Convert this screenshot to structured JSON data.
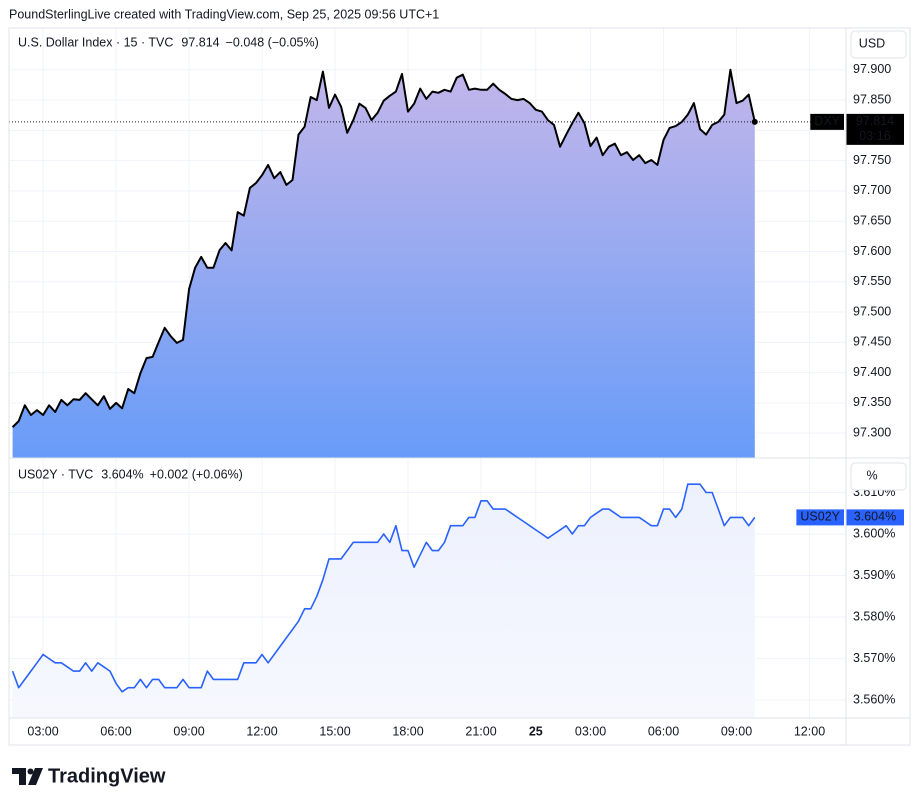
{
  "header": "PoundSterlingLive created with TradingView.com, Sep 25, 2025 09:56 UTC+1",
  "brand": "TradingView",
  "chart_data": [
    {
      "type": "area",
      "legend": {
        "title": "U.S. Dollar Index · 15 · TVC",
        "value": "97.814",
        "change": "−0.048 (−0.05%)"
      },
      "unit": "USD",
      "price_label": {
        "name": "DXY",
        "value": "97.814",
        "countdown": "03:16"
      },
      "price_line": true,
      "color": "#000000",
      "fill": [
        "#c2b6ea",
        "#689cf8"
      ],
      "label_color": "#000000",
      "grid": true,
      "xlim": [
        1.6,
        36
      ],
      "ylim": [
        97.259,
        97.969
      ],
      "yticks": [
        {
          "value": 97.3,
          "label": "97.300"
        },
        {
          "value": 97.35,
          "label": "97.350"
        },
        {
          "value": 97.4,
          "label": "97.400"
        },
        {
          "value": 97.45,
          "label": "97.450"
        },
        {
          "value": 97.5,
          "label": "97.500"
        },
        {
          "value": 97.55,
          "label": "97.550"
        },
        {
          "value": 97.6,
          "label": "97.600"
        },
        {
          "value": 97.65,
          "label": "97.650"
        },
        {
          "value": 97.7,
          "label": "97.700"
        },
        {
          "value": 97.75,
          "label": "97.750"
        },
        {
          "value": 97.8,
          "label": "97.800"
        },
        {
          "value": 97.85,
          "label": "97.850"
        },
        {
          "value": 97.9,
          "label": "97.900"
        }
      ],
      "x": [
        1.75,
        2,
        2.25,
        2.5,
        2.75,
        3,
        3.25,
        3.5,
        3.75,
        4,
        4.25,
        4.5,
        4.75,
        5,
        5.25,
        5.5,
        5.75,
        6,
        6.25,
        6.5,
        6.75,
        7,
        7.25,
        7.5,
        7.75,
        8,
        8.25,
        8.5,
        8.75,
        9,
        9.25,
        9.5,
        9.75,
        10,
        10.25,
        10.5,
        10.75,
        11,
        11.25,
        11.5,
        11.75,
        12,
        12.25,
        12.5,
        12.75,
        13,
        13.25,
        13.5,
        13.75,
        14,
        14.25,
        14.5,
        14.75,
        15,
        15.25,
        15.5,
        15.75,
        16,
        16.25,
        16.5,
        16.75,
        17,
        17.25,
        17.5,
        17.75,
        18,
        18.25,
        18.5,
        18.75,
        19,
        19.25,
        19.5,
        19.75,
        20,
        20.25,
        20.5,
        20.75,
        21,
        21.25,
        21.5,
        21.75,
        22,
        22.25,
        22.5,
        22.75,
        23,
        23.25,
        23.5,
        23.75,
        24,
        24.25,
        24.5,
        24.75,
        25,
        25.25,
        25.5,
        25.75,
        26,
        26.25,
        26.5,
        26.75,
        27,
        27.25,
        27.5,
        27.75,
        28,
        28.25,
        28.5,
        28.75,
        29,
        29.25,
        29.5,
        29.75,
        30,
        30.25,
        30.5,
        30.75,
        31,
        31.25,
        31.5,
        31.75,
        32,
        32.25
      ],
      "values": [
        97.31,
        97.32,
        97.346,
        97.33,
        97.338,
        97.33,
        97.346,
        97.335,
        97.355,
        97.346,
        97.356,
        97.355,
        97.366,
        97.356,
        97.346,
        97.361,
        97.34,
        97.35,
        97.341,
        97.373,
        97.366,
        97.399,
        97.424,
        97.426,
        97.45,
        97.474,
        97.46,
        97.449,
        97.454,
        97.538,
        97.573,
        97.591,
        97.573,
        97.573,
        97.602,
        97.614,
        97.602,
        97.665,
        97.659,
        97.705,
        97.713,
        97.726,
        97.743,
        97.721,
        97.731,
        97.71,
        97.718,
        97.793,
        97.806,
        97.855,
        97.85,
        97.897,
        97.837,
        97.859,
        97.839,
        97.796,
        97.817,
        97.844,
        97.837,
        97.817,
        97.829,
        97.849,
        97.857,
        97.864,
        97.893,
        97.831,
        97.844,
        97.869,
        97.852,
        97.864,
        97.862,
        97.867,
        97.864,
        97.887,
        97.892,
        97.867,
        97.869,
        97.867,
        97.867,
        97.877,
        97.867,
        97.86,
        97.852,
        97.85,
        97.852,
        97.845,
        97.834,
        97.831,
        97.817,
        97.809,
        97.773,
        97.793,
        97.812,
        97.829,
        97.812,
        97.774,
        97.788,
        97.759,
        97.773,
        97.778,
        97.759,
        97.764,
        97.751,
        97.759,
        97.746,
        97.751,
        97.743,
        97.784,
        97.804,
        97.807,
        97.814,
        97.826,
        97.845,
        97.802,
        97.793,
        97.809,
        97.814,
        97.826,
        97.9,
        97.845,
        97.849,
        97.859,
        97.814
      ]
    },
    {
      "type": "area",
      "legend": {
        "title": "US02Y · TVC",
        "value": "3.604%",
        "change": "+0.002 (+0.06%)"
      },
      "unit": "%",
      "price_label": {
        "name": "US02Y",
        "value": "3.604%"
      },
      "price_line": false,
      "color": "#2962ff",
      "fill": [
        "#edf1fd",
        "#f6f8fe"
      ],
      "label_color": "#2962ff",
      "grid": true,
      "xlim": [
        1.6,
        36
      ],
      "xticks": [
        {
          "value": 3,
          "label": "03:00"
        },
        {
          "value": 6,
          "label": "06:00"
        },
        {
          "value": 9,
          "label": "09:00"
        },
        {
          "value": 12,
          "label": "12:00"
        },
        {
          "value": 15,
          "label": "15:00"
        },
        {
          "value": 18,
          "label": "18:00"
        },
        {
          "value": 21,
          "label": "21:00"
        },
        {
          "value": 23.25,
          "label": "25",
          "bold": true
        },
        {
          "value": 25.5,
          "label": "03:00"
        },
        {
          "value": 28.5,
          "label": "06:00"
        },
        {
          "value": 31.5,
          "label": "09:00"
        },
        {
          "value": 34.5,
          "label": "12:00"
        }
      ],
      "ylim": [
        3.5557,
        3.6183
      ],
      "yticks": [
        {
          "value": 3.56,
          "label": "3.560%"
        },
        {
          "value": 3.57,
          "label": "3.570%"
        },
        {
          "value": 3.58,
          "label": "3.580%"
        },
        {
          "value": 3.59,
          "label": "3.590%"
        },
        {
          "value": 3.6,
          "label": "3.600%"
        },
        {
          "value": 3.61,
          "label": "3.610%"
        }
      ],
      "x": [
        1.75,
        2,
        2.25,
        2.5,
        2.75,
        3,
        3.25,
        3.5,
        3.75,
        4,
        4.25,
        4.5,
        4.75,
        5,
        5.25,
        5.5,
        5.75,
        6,
        6.25,
        6.5,
        6.75,
        7,
        7.25,
        7.5,
        7.75,
        8,
        8.25,
        8.5,
        8.75,
        9,
        9.25,
        9.5,
        9.75,
        10,
        10.25,
        10.5,
        10.75,
        11,
        11.25,
        11.5,
        11.75,
        12,
        12.25,
        12.5,
        12.75,
        13,
        13.25,
        13.5,
        13.75,
        14,
        14.25,
        14.5,
        14.75,
        15,
        15.25,
        15.5,
        15.75,
        16,
        16.25,
        16.5,
        16.75,
        17,
        17.25,
        17.5,
        17.75,
        18,
        18.25,
        18.5,
        18.75,
        19,
        19.25,
        19.5,
        19.75,
        20,
        20.25,
        20.5,
        20.75,
        21,
        21.25,
        21.5,
        21.75,
        22,
        22.25,
        22.5,
        22.75,
        23,
        23.25,
        23.5,
        23.75,
        24,
        24.25,
        24.5,
        24.75,
        25,
        25.25,
        25.5,
        25.75,
        26,
        26.25,
        26.5,
        26.75,
        27,
        27.25,
        27.5,
        27.75,
        28,
        28.25,
        28.5,
        28.75,
        29,
        29.25,
        29.5,
        29.75,
        30,
        30.25,
        30.5,
        30.75,
        31,
        31.25,
        31.5,
        31.75,
        32,
        32.25
      ],
      "values": [
        3.567,
        3.563,
        3.565,
        3.567,
        3.569,
        3.571,
        3.57,
        3.569,
        3.569,
        3.568,
        3.567,
        3.567,
        3.569,
        3.567,
        3.569,
        3.568,
        3.567,
        3.564,
        3.562,
        3.563,
        3.563,
        3.565,
        3.563,
        3.565,
        3.565,
        3.563,
        3.563,
        3.563,
        3.565,
        3.563,
        3.563,
        3.563,
        3.567,
        3.565,
        3.565,
        3.565,
        3.565,
        3.565,
        3.569,
        3.569,
        3.569,
        3.571,
        3.569,
        3.571,
        3.573,
        3.575,
        3.577,
        3.579,
        3.582,
        3.582,
        3.585,
        3.589,
        3.594,
        3.594,
        3.594,
        3.596,
        3.598,
        3.598,
        3.598,
        3.598,
        3.598,
        3.6,
        3.598,
        3.602,
        3.596,
        3.596,
        3.592,
        3.595,
        3.598,
        3.596,
        3.596,
        3.598,
        3.602,
        3.602,
        3.602,
        3.604,
        3.604,
        3.608,
        3.608,
        3.606,
        3.606,
        3.606,
        3.605,
        3.604,
        3.603,
        3.602,
        3.601,
        3.6,
        3.599,
        3.6,
        3.601,
        3.602,
        3.6,
        3.602,
        3.602,
        3.604,
        3.605,
        3.606,
        3.606,
        3.605,
        3.604,
        3.604,
        3.604,
        3.604,
        3.603,
        3.602,
        3.602,
        3.606,
        3.606,
        3.604,
        3.606,
        3.612,
        3.612,
        3.612,
        3.61,
        3.61,
        3.606,
        3.602,
        3.604,
        3.604,
        3.604,
        3.602,
        3.604
      ]
    }
  ]
}
